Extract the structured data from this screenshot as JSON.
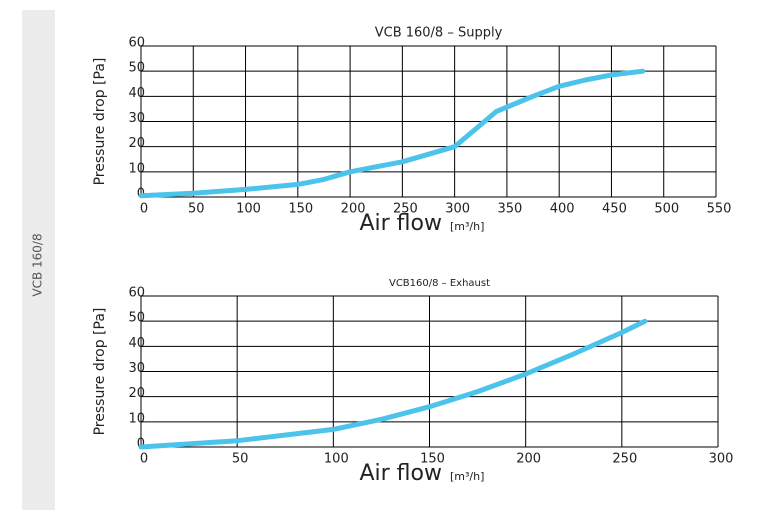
{
  "side_label": "VCB 160/8",
  "chart_data": [
    {
      "type": "line",
      "title": "VCB 160/8 – Supply",
      "xlabel": "Air flow",
      "xunit": "[m³/h]",
      "ylabel": "Pressure drop [Pa]",
      "xlim": [
        0,
        550
      ],
      "xticks": [
        0,
        50,
        100,
        150,
        200,
        250,
        300,
        350,
        400,
        450,
        500,
        550
      ],
      "ylim": [
        0,
        60
      ],
      "yticks": [
        0,
        10,
        20,
        30,
        40,
        50,
        60
      ],
      "grid": true,
      "series": [
        {
          "name": "Supply",
          "color": "#4cc3ea",
          "x": [
            0,
            50,
            100,
            150,
            175,
            200,
            250,
            300,
            320,
            340,
            375,
            400,
            425,
            450,
            480
          ],
          "values": [
            0.5,
            1.5,
            3,
            5,
            7,
            10,
            14,
            20,
            27,
            34,
            40,
            44,
            46.5,
            48.5,
            50
          ]
        }
      ]
    },
    {
      "type": "line",
      "title": "VCB160/8 – Exhaust",
      "xlabel": "Air flow",
      "xunit": "[m³/h]",
      "ylabel": "Pressure drop [Pa]",
      "xlim": [
        0,
        300
      ],
      "xticks": [
        0,
        50,
        100,
        150,
        200,
        250,
        300
      ],
      "ylim": [
        0,
        60
      ],
      "yticks": [
        0,
        10,
        20,
        30,
        40,
        50,
        60
      ],
      "grid": true,
      "series": [
        {
          "name": "Exhaust",
          "color": "#4cc3ea",
          "x": [
            0,
            50,
            100,
            125,
            150,
            175,
            200,
            225,
            250,
            262
          ],
          "values": [
            0,
            2.5,
            7,
            11,
            16,
            22,
            29,
            37,
            45.5,
            50
          ]
        }
      ]
    }
  ]
}
